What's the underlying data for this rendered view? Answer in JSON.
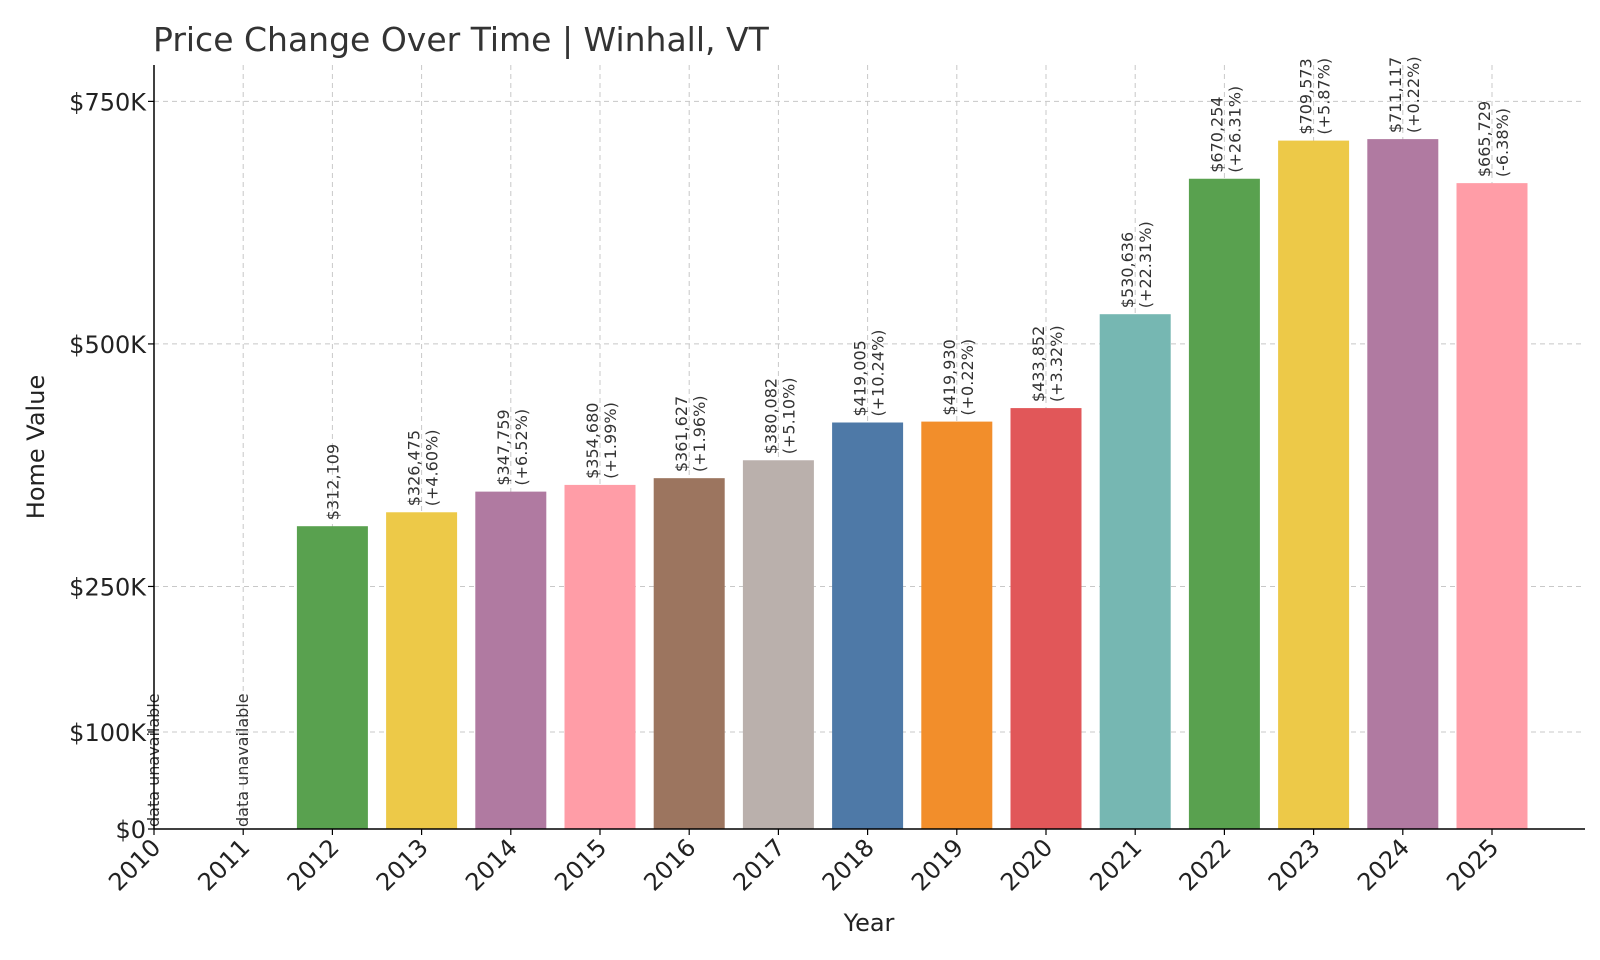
{
  "chart_data": {
    "type": "bar",
    "title": "Price Change Over Time | Winhall, VT",
    "xlabel": "Year",
    "ylabel": "Home Value",
    "ylim": [
      0,
      787500
    ],
    "grid": true,
    "yticks": [
      {
        "value": 0,
        "label": "$0"
      },
      {
        "value": 100000,
        "label": "$100K"
      },
      {
        "value": 250000,
        "label": "$250K"
      },
      {
        "value": 500000,
        "label": "$500K"
      },
      {
        "value": 750000,
        "label": "$750K"
      }
    ],
    "unavailable_text": "data unavailable",
    "categories": [
      "2010",
      "2011",
      "2012",
      "2013",
      "2014",
      "2015",
      "2016",
      "2017",
      "2018",
      "2019",
      "2020",
      "2021",
      "2022",
      "2023",
      "2024",
      "2025"
    ],
    "values": [
      null,
      null,
      312109,
      326475,
      347759,
      354680,
      361627,
      380082,
      419005,
      419930,
      433852,
      530636,
      670254,
      709573,
      711117,
      665729
    ],
    "value_labels": [
      "",
      "",
      "$312,109",
      "$326,475",
      "$347,759",
      "$354,680",
      "$361,627",
      "$380,082",
      "$419,005",
      "$419,930",
      "$433,852",
      "$530,636",
      "$670,254",
      "$709,573",
      "$711,117",
      "$665,729"
    ],
    "change_labels": [
      "",
      "",
      "",
      "(+4.60%)",
      "(+6.52%)",
      "(+1.99%)",
      "(+1.96%)",
      "(+5.10%)",
      "(+10.24%)",
      "(+0.22%)",
      "(+3.32%)",
      "(+22.31%)",
      "(+26.31%)",
      "(+5.87%)",
      "(+0.22%)",
      "(-6.38%)"
    ],
    "colors": [
      "#e15759",
      "#76b7b2",
      "#59a14f",
      "#edc948",
      "#b07aa1",
      "#ff9da7",
      "#9c755f",
      "#bab0ac",
      "#4e79a7",
      "#f28e2b",
      "#e15759",
      "#76b7b2",
      "#59a14f",
      "#edc948",
      "#b07aa1",
      "#ff9da7"
    ]
  }
}
